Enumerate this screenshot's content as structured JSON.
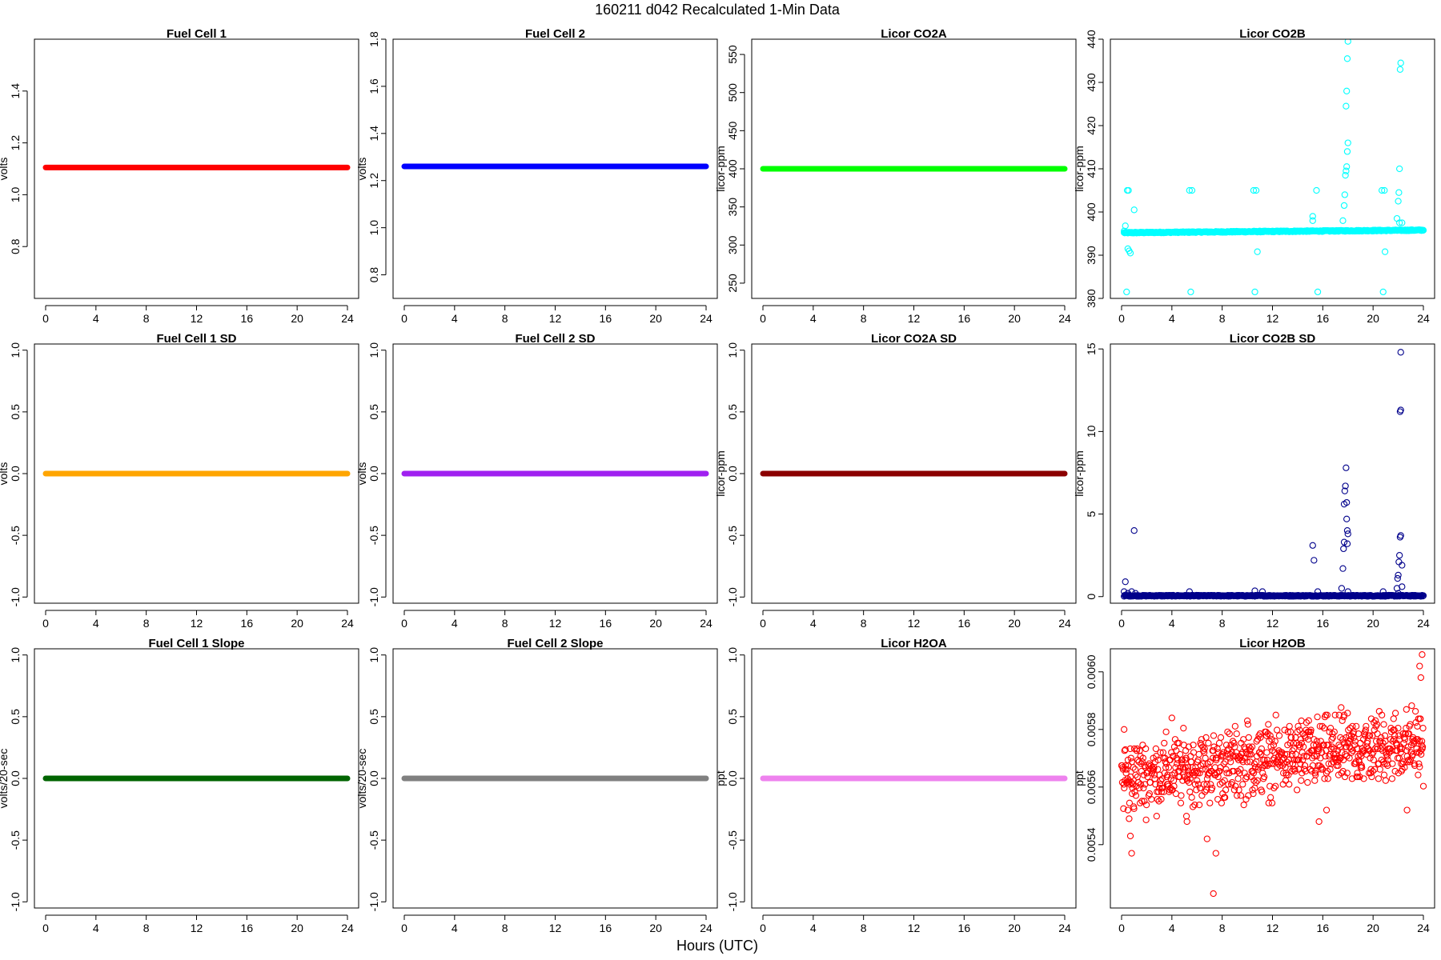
{
  "figure": {
    "title": "160211   d042   Recalculated 1-Min Data",
    "xlabel": "Hours (UTC)"
  },
  "chart_data": [
    {
      "type": "line",
      "title": "Fuel Cell 1",
      "ylabel": "volts",
      "xlim": [
        0,
        24
      ],
      "xticks": [
        0,
        4,
        8,
        12,
        16,
        20,
        24
      ],
      "ylim": [
        0.6,
        1.6
      ],
      "yticks": [
        0.8,
        1.0,
        1.2,
        1.4
      ],
      "ytick_labels": [
        "0.8",
        "1.0",
        "1.2",
        "1.4"
      ],
      "color": "#ff0000",
      "series": [
        {
          "x": [
            0,
            24
          ],
          "values": [
            1.105,
            1.105
          ]
        }
      ]
    },
    {
      "type": "line",
      "title": "Fuel Cell 2",
      "ylabel": "volts",
      "xlim": [
        0,
        24
      ],
      "xticks": [
        0,
        4,
        8,
        12,
        16,
        20,
        24
      ],
      "ylim": [
        0.7,
        1.8
      ],
      "yticks": [
        0.8,
        1.0,
        1.2,
        1.4,
        1.6,
        1.8
      ],
      "ytick_labels": [
        "0.8",
        "1.0",
        "1.2",
        "1.4",
        "1.6",
        "1.8"
      ],
      "color": "#0000ff",
      "series": [
        {
          "x": [
            0,
            24
          ],
          "values": [
            1.26,
            1.26
          ]
        }
      ]
    },
    {
      "type": "line",
      "title": "Licor CO2A",
      "ylabel": "licor-ppm",
      "xlim": [
        0,
        24
      ],
      "xticks": [
        0,
        4,
        8,
        12,
        16,
        20,
        24
      ],
      "ylim": [
        230,
        570
      ],
      "yticks": [
        250,
        300,
        350,
        400,
        450,
        500,
        550
      ],
      "ytick_labels": [
        "250",
        "300",
        "350",
        "400",
        "450",
        "500",
        "550"
      ],
      "color": "#00ff00",
      "series": [
        {
          "x": [
            0,
            24
          ],
          "values": [
            400,
            400
          ]
        }
      ]
    },
    {
      "type": "scatter",
      "title": "Licor CO2B",
      "ylabel": "licor-ppm",
      "xlim": [
        0,
        24
      ],
      "xticks": [
        0,
        4,
        8,
        12,
        16,
        20,
        24
      ],
      "ylim": [
        380,
        440
      ],
      "yticks": [
        380,
        390,
        400,
        410,
        420,
        430,
        440
      ],
      "ytick_labels": [
        "380",
        "390",
        "400",
        "410",
        "420",
        "430",
        "440"
      ],
      "color": "#00ffff",
      "baseline": {
        "x_start": 0.2,
        "x_end": 24.0,
        "step": 0.05,
        "y_start": 395.2,
        "y_end": 395.8
      },
      "points": [
        [
          0.2,
          395.6
        ],
        [
          0.3,
          396.8
        ],
        [
          0.4,
          381.5
        ],
        [
          0.45,
          405
        ],
        [
          0.5,
          391.5
        ],
        [
          0.55,
          405
        ],
        [
          0.6,
          391
        ],
        [
          0.7,
          390.5
        ],
        [
          1.0,
          400.5
        ],
        [
          5.4,
          405
        ],
        [
          5.5,
          381.5
        ],
        [
          5.6,
          405
        ],
        [
          10.5,
          405
        ],
        [
          10.6,
          381.5
        ],
        [
          10.7,
          405
        ],
        [
          10.8,
          390.8
        ],
        [
          15.2,
          399
        ],
        [
          15.2,
          398
        ],
        [
          15.5,
          405
        ],
        [
          15.6,
          381.5
        ],
        [
          17.6,
          398
        ],
        [
          17.7,
          401.5
        ],
        [
          17.75,
          404
        ],
        [
          17.8,
          408.5
        ],
        [
          17.85,
          409.5
        ],
        [
          17.9,
          410.5
        ],
        [
          17.95,
          414
        ],
        [
          18.0,
          416
        ],
        [
          17.85,
          424.5
        ],
        [
          17.9,
          428
        ],
        [
          17.95,
          435.5
        ],
        [
          18.0,
          439.5
        ],
        [
          20.7,
          405
        ],
        [
          20.8,
          381.5
        ],
        [
          20.9,
          405
        ],
        [
          20.95,
          390.8
        ],
        [
          21.9,
          398.5
        ],
        [
          22.0,
          402.5
        ],
        [
          22.05,
          404.5
        ],
        [
          22.1,
          410
        ],
        [
          22.15,
          433
        ],
        [
          22.2,
          434.5
        ],
        [
          22.1,
          397.5
        ],
        [
          22.3,
          397.5
        ]
      ]
    },
    {
      "type": "line",
      "title": "Fuel Cell 1 SD",
      "ylabel": "volts",
      "xlim": [
        0,
        24
      ],
      "xticks": [
        0,
        4,
        8,
        12,
        16,
        20,
        24
      ],
      "ylim": [
        -1.05,
        1.05
      ],
      "yticks": [
        -1.0,
        -0.5,
        0.0,
        0.5,
        1.0
      ],
      "ytick_labels": [
        "-1.0",
        "-0.5",
        "0.0",
        "0.5",
        "1.0"
      ],
      "color": "#ffa500",
      "series": [
        {
          "x": [
            0,
            24
          ],
          "values": [
            0,
            0
          ]
        }
      ]
    },
    {
      "type": "line",
      "title": "Fuel Cell 2 SD",
      "ylabel": "volts",
      "xlim": [
        0,
        24
      ],
      "xticks": [
        0,
        4,
        8,
        12,
        16,
        20,
        24
      ],
      "ylim": [
        -1.05,
        1.05
      ],
      "yticks": [
        -1.0,
        -0.5,
        0.0,
        0.5,
        1.0
      ],
      "ytick_labels": [
        "-1.0",
        "-0.5",
        "0.0",
        "0.5",
        "1.0"
      ],
      "color": "#a020f0",
      "series": [
        {
          "x": [
            0,
            24
          ],
          "values": [
            0,
            0
          ]
        }
      ]
    },
    {
      "type": "line",
      "title": "Licor CO2A SD",
      "ylabel": "licor-ppm",
      "xlim": [
        0,
        24
      ],
      "xticks": [
        0,
        4,
        8,
        12,
        16,
        20,
        24
      ],
      "ylim": [
        -1.05,
        1.05
      ],
      "yticks": [
        -1.0,
        -0.5,
        0.0,
        0.5,
        1.0
      ],
      "ytick_labels": [
        "-1.0",
        "-0.5",
        "0.0",
        "0.5",
        "1.0"
      ],
      "color": "#8b0000",
      "series": [
        {
          "x": [
            0,
            24
          ],
          "values": [
            0,
            0
          ]
        }
      ]
    },
    {
      "type": "scatter",
      "title": "Licor CO2B SD",
      "ylabel": "licor-ppm",
      "xlim": [
        0,
        24
      ],
      "xticks": [
        0,
        4,
        8,
        12,
        16,
        20,
        24
      ],
      "ylim": [
        -0.4,
        15.3
      ],
      "yticks": [
        0,
        5,
        10,
        15
      ],
      "ytick_labels": [
        "0",
        "5",
        "10",
        "15"
      ],
      "color": "#00008b",
      "baseline": {
        "x_start": 0.2,
        "x_end": 24.0,
        "step": 0.05,
        "y_start": 0.05,
        "y_end": 0.05
      },
      "points": [
        [
          0.2,
          0.3
        ],
        [
          0.3,
          0.9
        ],
        [
          0.5,
          0.2
        ],
        [
          0.8,
          0.3
        ],
        [
          1.0,
          4.0
        ],
        [
          1.1,
          0.2
        ],
        [
          5.4,
          0.3
        ],
        [
          10.6,
          0.35
        ],
        [
          11.2,
          0.3
        ],
        [
          15.2,
          3.1
        ],
        [
          15.3,
          2.2
        ],
        [
          15.6,
          0.3
        ],
        [
          17.5,
          0.5
        ],
        [
          17.6,
          1.7
        ],
        [
          17.65,
          2.9
        ],
        [
          17.7,
          3.3
        ],
        [
          17.7,
          5.6
        ],
        [
          17.75,
          6.4
        ],
        [
          17.8,
          6.7
        ],
        [
          17.85,
          7.8
        ],
        [
          17.9,
          5.7
        ],
        [
          17.9,
          4.7
        ],
        [
          17.95,
          4.0
        ],
        [
          18.0,
          3.8
        ],
        [
          17.95,
          3.2
        ],
        [
          18.0,
          0.3
        ],
        [
          20.8,
          0.3
        ],
        [
          21.9,
          0.5
        ],
        [
          21.95,
          1.1
        ],
        [
          22.0,
          1.3
        ],
        [
          22.05,
          2.1
        ],
        [
          22.1,
          2.5
        ],
        [
          22.15,
          3.6
        ],
        [
          22.2,
          3.7
        ],
        [
          22.15,
          11.2
        ],
        [
          22.2,
          11.3
        ],
        [
          22.2,
          14.8
        ],
        [
          22.3,
          0.6
        ],
        [
          22.3,
          1.9
        ],
        [
          22.0,
          0.2
        ]
      ]
    },
    {
      "type": "line",
      "title": "Fuel Cell 1 Slope",
      "ylabel": "volts/20-sec",
      "xlim": [
        0,
        24
      ],
      "xticks": [
        0,
        4,
        8,
        12,
        16,
        20,
        24
      ],
      "ylim": [
        -1.05,
        1.05
      ],
      "yticks": [
        -1.0,
        -0.5,
        0.0,
        0.5,
        1.0
      ],
      "ytick_labels": [
        "-1.0",
        "-0.5",
        "0.0",
        "0.5",
        "1.0"
      ],
      "color": "#006400",
      "series": [
        {
          "x": [
            0,
            24
          ],
          "values": [
            0,
            0
          ]
        }
      ]
    },
    {
      "type": "line",
      "title": "Fuel Cell 2 Slope",
      "ylabel": "volts/20-sec",
      "xlim": [
        0,
        24
      ],
      "xticks": [
        0,
        4,
        8,
        12,
        16,
        20,
        24
      ],
      "ylim": [
        -1.05,
        1.05
      ],
      "yticks": [
        -1.0,
        -0.5,
        0.0,
        0.5,
        1.0
      ],
      "ytick_labels": [
        "-1.0",
        "-0.5",
        "0.0",
        "0.5",
        "1.0"
      ],
      "color": "#808080",
      "series": [
        {
          "x": [
            0,
            24
          ],
          "values": [
            0,
            0
          ]
        }
      ]
    },
    {
      "type": "line",
      "title": "Licor H2OA",
      "ylabel": "ppt",
      "xlim": [
        0,
        24
      ],
      "xticks": [
        0,
        4,
        8,
        12,
        16,
        20,
        24
      ],
      "ylim": [
        -1.05,
        1.05
      ],
      "yticks": [
        -1.0,
        -0.5,
        0.0,
        0.5,
        1.0
      ],
      "ytick_labels": [
        "-1.0",
        "-0.5",
        "0.0",
        "0.5",
        "1.0"
      ],
      "color": "#ee82ee",
      "series": [
        {
          "x": [
            0,
            24
          ],
          "values": [
            0,
            0
          ]
        }
      ]
    },
    {
      "type": "scatter",
      "title": "Licor H2OB",
      "ylabel": "ppt",
      "xlim": [
        0,
        24
      ],
      "xticks": [
        0,
        4,
        8,
        12,
        16,
        20,
        24
      ],
      "ylim": [
        0.00518,
        0.00608
      ],
      "yticks": [
        0.0054,
        0.0056,
        0.0058,
        0.006
      ],
      "ytick_labels": [
        "0.0054",
        "0.0056",
        "0.0058",
        "0.0060"
      ],
      "color": "#ff0000",
      "cloud": {
        "x_start": 0.0,
        "x_end": 24.0,
        "step": 0.03,
        "y_quantum": 6.5e-06,
        "y_mean_start": 0.005633,
        "y_mean_end": 0.005755,
        "y_spread": 0.00011
      },
      "points": [
        [
          0.2,
          0.0058
        ],
        [
          0.3,
          0.00573
        ],
        [
          0.5,
          0.00552
        ],
        [
          0.6,
          0.00549
        ],
        [
          0.7,
          0.00543
        ],
        [
          0.8,
          0.00537
        ],
        [
          4.0,
          0.00584
        ],
        [
          5.2,
          0.00548
        ],
        [
          7.3,
          0.00523
        ],
        [
          7.5,
          0.00537
        ],
        [
          6.8,
          0.00542
        ],
        [
          10.0,
          0.00583
        ],
        [
          14.3,
          0.00583
        ],
        [
          15.7,
          0.00548
        ],
        [
          16.3,
          0.00552
        ],
        [
          17.3,
          0.00585
        ],
        [
          22.7,
          0.00552
        ],
        [
          23.7,
          0.00602
        ],
        [
          23.9,
          0.00606
        ],
        [
          23.8,
          0.00598
        ],
        [
          23.7,
          0.00567
        ]
      ]
    }
  ]
}
